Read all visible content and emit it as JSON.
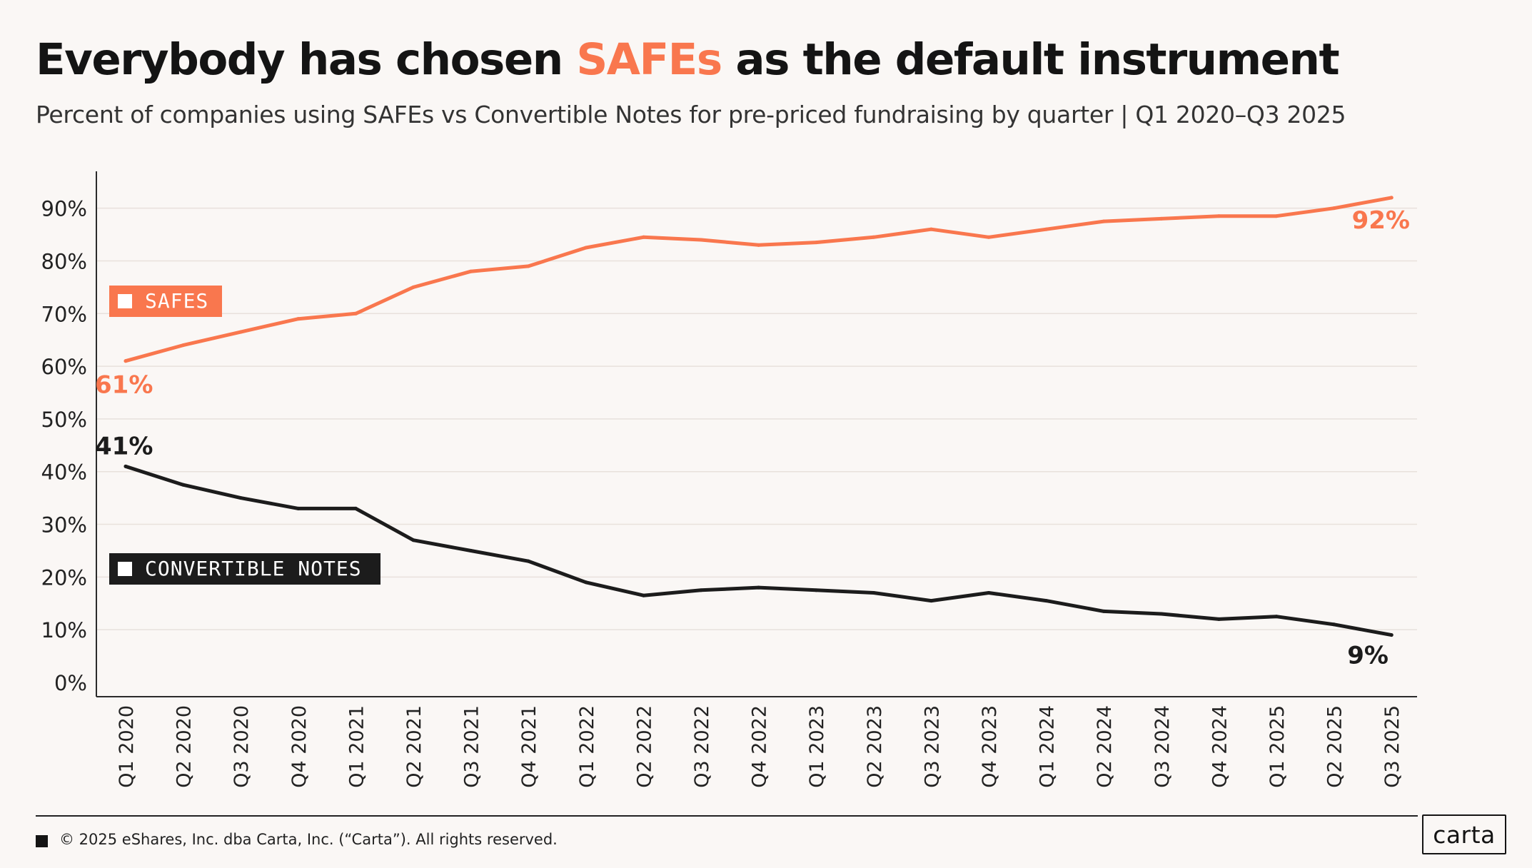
{
  "title": {
    "prefix": "Everybody has chosen ",
    "highlight": "SAFEs",
    "suffix": " as the default instrument"
  },
  "subtitle": "Percent of companies using SAFEs vs Convertible Notes for pre-priced fundraising by quarter | Q1 2020–Q3 2025",
  "colors": {
    "safes": "#f9774e",
    "notes": "#1c1c1c",
    "grid": "#e8e1dc",
    "axis": "#2b2b2b",
    "background": "#faf7f5"
  },
  "chart_data": {
    "type": "line",
    "x": [
      "Q1 2020",
      "Q2 2020",
      "Q3 2020",
      "Q4 2020",
      "Q1 2021",
      "Q2 2021",
      "Q3 2021",
      "Q4 2021",
      "Q1 2022",
      "Q2 2022",
      "Q3 2022",
      "Q4 2022",
      "Q1 2023",
      "Q2 2023",
      "Q3 2023",
      "Q4 2023",
      "Q1 2024",
      "Q2 2024",
      "Q3 2024",
      "Q4 2024",
      "Q1 2025",
      "Q2 2025",
      "Q3 2025"
    ],
    "series": [
      {
        "name": "SAFES",
        "color": "#f9774e",
        "values": [
          61,
          64,
          66.5,
          69,
          70,
          75,
          78,
          79,
          82.5,
          84.5,
          84,
          83,
          83.5,
          84.5,
          86,
          84.5,
          86,
          87.5,
          88,
          88.5,
          88.5,
          90,
          92
        ],
        "start_label": "61%",
        "end_label": "92%"
      },
      {
        "name": "CONVERTIBLE NOTES",
        "color": "#1c1c1c",
        "values": [
          41,
          37.5,
          35,
          33,
          33,
          27,
          25,
          23,
          19,
          16.5,
          17.5,
          18,
          17.5,
          17,
          15.5,
          17,
          15.5,
          13.5,
          13,
          12,
          12.5,
          11,
          9
        ],
        "start_label": "41%",
        "end_label": "9%"
      }
    ],
    "yticks": [
      "0%",
      "10%",
      "20%",
      "30%",
      "40%",
      "50%",
      "60%",
      "70%",
      "80%",
      "90%"
    ],
    "ytick_values": [
      0,
      10,
      20,
      30,
      40,
      50,
      60,
      70,
      80,
      90
    ],
    "ylim": [
      0,
      97
    ],
    "grid": true,
    "legend": "inline-left"
  },
  "footer": {
    "copyright": "© 2025 eShares, Inc. dba Carta, Inc. (“Carta”). All rights reserved.",
    "logo": "carta"
  }
}
